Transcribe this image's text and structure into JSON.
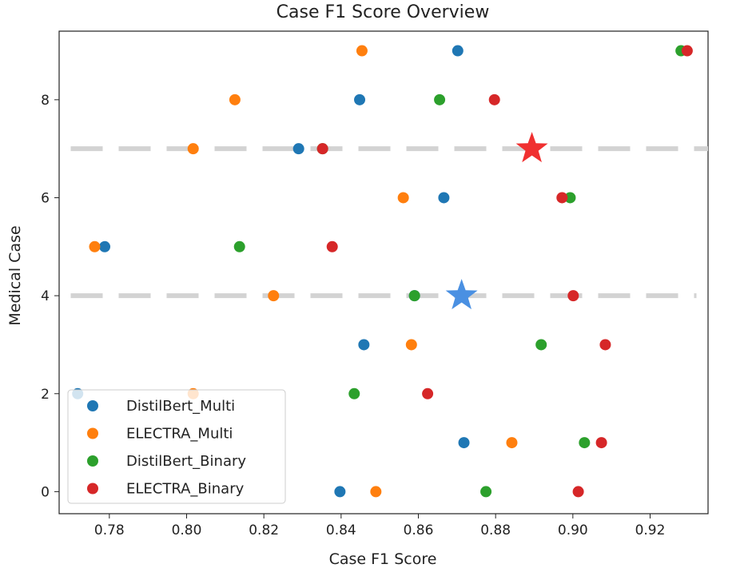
{
  "chart_data": {
    "type": "scatter",
    "title": "Case F1 Score Overview",
    "xlabel": "Case F1 Score",
    "ylabel": "Medical Case",
    "xlim": [
      0.767,
      0.935
    ],
    "ylim": [
      -0.45,
      9.4
    ],
    "xticks": [
      0.78,
      0.8,
      0.82,
      0.84,
      0.86,
      0.88,
      0.9,
      0.92
    ],
    "xtick_labels": [
      "0.78",
      "0.80",
      "0.82",
      "0.84",
      "0.86",
      "0.88",
      "0.90",
      "0.92"
    ],
    "yticks": [
      0,
      2,
      4,
      6,
      8
    ],
    "ytick_labels": [
      "0",
      "2",
      "4",
      "6",
      "8"
    ],
    "grid": false,
    "legend_position": "lower-left",
    "series": [
      {
        "name": "DistilBert_Multi",
        "color": "#1f77b4",
        "points": [
          {
            "x": 0.8397,
            "y": 0
          },
          {
            "x": 0.8718,
            "y": 1
          },
          {
            "x": 0.7718,
            "y": 2
          },
          {
            "x": 0.8459,
            "y": 3
          },
          {
            "x": 0.859,
            "y": 4
          },
          {
            "x": 0.7788,
            "y": 5
          },
          {
            "x": 0.8666,
            "y": 6
          },
          {
            "x": 0.829,
            "y": 7
          },
          {
            "x": 0.8448,
            "y": 8
          },
          {
            "x": 0.8702,
            "y": 9
          }
        ]
      },
      {
        "name": "ELECTRA_Multi",
        "color": "#ff7f0e",
        "points": [
          {
            "x": 0.849,
            "y": 0
          },
          {
            "x": 0.8842,
            "y": 1
          },
          {
            "x": 0.8017,
            "y": 2
          },
          {
            "x": 0.8582,
            "y": 3
          },
          {
            "x": 0.8225,
            "y": 4
          },
          {
            "x": 0.7762,
            "y": 5
          },
          {
            "x": 0.8561,
            "y": 6
          },
          {
            "x": 0.8017,
            "y": 7
          },
          {
            "x": 0.8125,
            "y": 8
          },
          {
            "x": 0.8454,
            "y": 9
          }
        ]
      },
      {
        "name": "DistilBert_Binary",
        "color": "#2ca02c",
        "points": [
          {
            "x": 0.8775,
            "y": 0
          },
          {
            "x": 0.903,
            "y": 1
          },
          {
            "x": 0.8434,
            "y": 2
          },
          {
            "x": 0.8918,
            "y": 3
          },
          {
            "x": 0.859,
            "y": 4
          },
          {
            "x": 0.8137,
            "y": 5
          },
          {
            "x": 0.8993,
            "y": 6
          },
          {
            "x": 0.8352,
            "y": 7
          },
          {
            "x": 0.8655,
            "y": 8
          },
          {
            "x": 0.928,
            "y": 9
          }
        ]
      },
      {
        "name": "ELECTRA_Binary",
        "color": "#d62728",
        "points": [
          {
            "x": 0.9014,
            "y": 0
          },
          {
            "x": 0.9074,
            "y": 1
          },
          {
            "x": 0.8624,
            "y": 2
          },
          {
            "x": 0.9084,
            "y": 3
          },
          {
            "x": 0.9001,
            "y": 4
          },
          {
            "x": 0.8377,
            "y": 5
          },
          {
            "x": 0.8972,
            "y": 6
          },
          {
            "x": 0.8352,
            "y": 7
          },
          {
            "x": 0.8797,
            "y": 8
          },
          {
            "x": 0.9296,
            "y": 9
          }
        ]
      }
    ],
    "reference_lines": [
      {
        "y": 7,
        "color": "#d3d3d3",
        "style": "dashed",
        "x_range": [
          0.77,
          0.935
        ]
      },
      {
        "y": 4,
        "color": "#d3d3d3",
        "style": "dashed",
        "x_range": [
          0.77,
          0.932
        ]
      }
    ],
    "star_markers": [
      {
        "x": 0.8894,
        "y": 7,
        "color": "#f03030"
      },
      {
        "x": 0.8712,
        "y": 4,
        "color": "#4a90e2"
      }
    ]
  }
}
